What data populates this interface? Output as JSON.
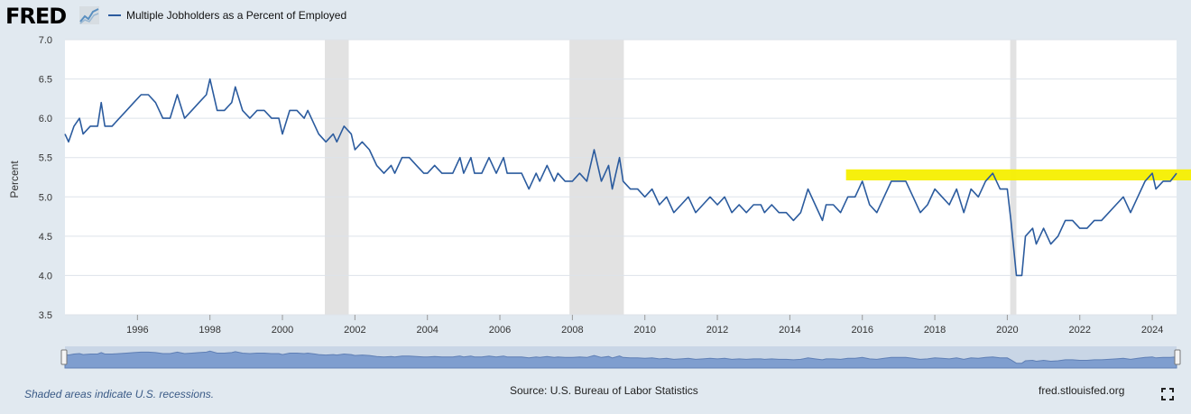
{
  "header": {
    "logo_text": "FRED",
    "logo_icon": "fred-chart-icon",
    "series_title": "Multiple Jobholders as a Percent of Employed"
  },
  "footer": {
    "recession_note": "Shaded areas indicate U.S. recessions.",
    "source": "Source: U.S. Bureau of Labor Statistics",
    "site": "fred.stlouisfed.org",
    "fullscreen_icon": "fullscreen-icon"
  },
  "colors": {
    "line": "#2b5b9e",
    "recession": "#e2e2e2",
    "highlight": "#f5ef00",
    "navigator": "#7f9ecf",
    "background": "#e1e9f0"
  },
  "chart_data": {
    "type": "line",
    "title": "Multiple Jobholders as a Percent of Employed",
    "ylabel": "Percent",
    "xlabel": "",
    "ylim": [
      3.5,
      7.0
    ],
    "xlim": [
      1994.0,
      2024.67
    ],
    "yticks": [
      "3.5",
      "4.0",
      "4.5",
      "5.0",
      "5.5",
      "6.0",
      "6.5",
      "7.0"
    ],
    "xticks": [
      "1996",
      "1998",
      "2000",
      "2002",
      "2004",
      "2006",
      "2008",
      "2010",
      "2012",
      "2014",
      "2016",
      "2018",
      "2020",
      "2022",
      "2024"
    ],
    "grid": true,
    "recessions": [
      [
        2001.17,
        2001.83
      ],
      [
        2007.92,
        2009.42
      ],
      [
        2020.08,
        2020.25
      ]
    ],
    "highlight": {
      "x": [
        2015.55,
        2024.67
      ],
      "y": [
        5.21,
        5.35
      ]
    },
    "series": [
      {
        "values": [
          [
            1994.0,
            5.8
          ],
          [
            1994.1,
            5.7
          ],
          [
            1994.25,
            5.9
          ],
          [
            1994.4,
            6.0
          ],
          [
            1994.5,
            5.8
          ],
          [
            1994.7,
            5.9
          ],
          [
            1994.9,
            5.9
          ],
          [
            1995.0,
            6.2
          ],
          [
            1995.1,
            5.9
          ],
          [
            1995.3,
            5.9
          ],
          [
            1995.5,
            6.0
          ],
          [
            1995.7,
            6.1
          ],
          [
            1995.9,
            6.2
          ],
          [
            1996.1,
            6.3
          ],
          [
            1996.3,
            6.3
          ],
          [
            1996.5,
            6.2
          ],
          [
            1996.7,
            6.0
          ],
          [
            1996.9,
            6.0
          ],
          [
            1997.1,
            6.3
          ],
          [
            1997.3,
            6.0
          ],
          [
            1997.5,
            6.1
          ],
          [
            1997.7,
            6.2
          ],
          [
            1997.9,
            6.3
          ],
          [
            1998.0,
            6.5
          ],
          [
            1998.2,
            6.1
          ],
          [
            1998.4,
            6.1
          ],
          [
            1998.6,
            6.2
          ],
          [
            1998.7,
            6.4
          ],
          [
            1998.9,
            6.1
          ],
          [
            1999.1,
            6.0
          ],
          [
            1999.3,
            6.1
          ],
          [
            1999.5,
            6.1
          ],
          [
            1999.7,
            6.0
          ],
          [
            1999.9,
            6.0
          ],
          [
            2000.0,
            5.8
          ],
          [
            2000.2,
            6.1
          ],
          [
            2000.4,
            6.1
          ],
          [
            2000.6,
            6.0
          ],
          [
            2000.7,
            6.1
          ],
          [
            2000.9,
            5.9
          ],
          [
            2001.0,
            5.8
          ],
          [
            2001.2,
            5.7
          ],
          [
            2001.4,
            5.8
          ],
          [
            2001.5,
            5.7
          ],
          [
            2001.7,
            5.9
          ],
          [
            2001.9,
            5.8
          ],
          [
            2002.0,
            5.6
          ],
          [
            2002.2,
            5.7
          ],
          [
            2002.4,
            5.6
          ],
          [
            2002.6,
            5.4
          ],
          [
            2002.8,
            5.3
          ],
          [
            2003.0,
            5.4
          ],
          [
            2003.1,
            5.3
          ],
          [
            2003.3,
            5.5
          ],
          [
            2003.5,
            5.5
          ],
          [
            2003.7,
            5.4
          ],
          [
            2003.9,
            5.3
          ],
          [
            2004.0,
            5.3
          ],
          [
            2004.2,
            5.4
          ],
          [
            2004.4,
            5.3
          ],
          [
            2004.5,
            5.3
          ],
          [
            2004.7,
            5.3
          ],
          [
            2004.9,
            5.5
          ],
          [
            2005.0,
            5.3
          ],
          [
            2005.2,
            5.5
          ],
          [
            2005.3,
            5.3
          ],
          [
            2005.5,
            5.3
          ],
          [
            2005.7,
            5.5
          ],
          [
            2005.9,
            5.3
          ],
          [
            2006.1,
            5.5
          ],
          [
            2006.2,
            5.3
          ],
          [
            2006.4,
            5.3
          ],
          [
            2006.6,
            5.3
          ],
          [
            2006.8,
            5.1
          ],
          [
            2007.0,
            5.3
          ],
          [
            2007.1,
            5.2
          ],
          [
            2007.3,
            5.4
          ],
          [
            2007.5,
            5.2
          ],
          [
            2007.6,
            5.3
          ],
          [
            2007.8,
            5.2
          ],
          [
            2008.0,
            5.2
          ],
          [
            2008.2,
            5.3
          ],
          [
            2008.4,
            5.2
          ],
          [
            2008.6,
            5.6
          ],
          [
            2008.8,
            5.2
          ],
          [
            2009.0,
            5.4
          ],
          [
            2009.1,
            5.1
          ],
          [
            2009.3,
            5.5
          ],
          [
            2009.4,
            5.2
          ],
          [
            2009.6,
            5.1
          ],
          [
            2009.8,
            5.1
          ],
          [
            2010.0,
            5.0
          ],
          [
            2010.2,
            5.1
          ],
          [
            2010.4,
            4.9
          ],
          [
            2010.6,
            5.0
          ],
          [
            2010.8,
            4.8
          ],
          [
            2011.0,
            4.9
          ],
          [
            2011.2,
            5.0
          ],
          [
            2011.4,
            4.8
          ],
          [
            2011.6,
            4.9
          ],
          [
            2011.8,
            5.0
          ],
          [
            2012.0,
            4.9
          ],
          [
            2012.2,
            5.0
          ],
          [
            2012.4,
            4.8
          ],
          [
            2012.6,
            4.9
          ],
          [
            2012.8,
            4.8
          ],
          [
            2013.0,
            4.9
          ],
          [
            2013.2,
            4.9
          ],
          [
            2013.3,
            4.8
          ],
          [
            2013.5,
            4.9
          ],
          [
            2013.7,
            4.8
          ],
          [
            2013.9,
            4.8
          ],
          [
            2014.1,
            4.7
          ],
          [
            2014.3,
            4.8
          ],
          [
            2014.5,
            5.1
          ],
          [
            2014.7,
            4.9
          ],
          [
            2014.9,
            4.7
          ],
          [
            2015.0,
            4.9
          ],
          [
            2015.2,
            4.9
          ],
          [
            2015.4,
            4.8
          ],
          [
            2015.6,
            5.0
          ],
          [
            2015.8,
            5.0
          ],
          [
            2016.0,
            5.2
          ],
          [
            2016.2,
            4.9
          ],
          [
            2016.4,
            4.8
          ],
          [
            2016.6,
            5.0
          ],
          [
            2016.8,
            5.2
          ],
          [
            2017.0,
            5.2
          ],
          [
            2017.2,
            5.2
          ],
          [
            2017.4,
            5.0
          ],
          [
            2017.6,
            4.8
          ],
          [
            2017.8,
            4.9
          ],
          [
            2018.0,
            5.1
          ],
          [
            2018.2,
            5.0
          ],
          [
            2018.4,
            4.9
          ],
          [
            2018.6,
            5.1
          ],
          [
            2018.8,
            4.8
          ],
          [
            2019.0,
            5.1
          ],
          [
            2019.2,
            5.0
          ],
          [
            2019.4,
            5.2
          ],
          [
            2019.6,
            5.3
          ],
          [
            2019.8,
            5.1
          ],
          [
            2020.0,
            5.1
          ],
          [
            2020.1,
            4.7
          ],
          [
            2020.25,
            4.0
          ],
          [
            2020.4,
            4.0
          ],
          [
            2020.5,
            4.5
          ],
          [
            2020.7,
            4.6
          ],
          [
            2020.8,
            4.4
          ],
          [
            2021.0,
            4.6
          ],
          [
            2021.2,
            4.4
          ],
          [
            2021.4,
            4.5
          ],
          [
            2021.6,
            4.7
          ],
          [
            2021.8,
            4.7
          ],
          [
            2022.0,
            4.6
          ],
          [
            2022.2,
            4.6
          ],
          [
            2022.4,
            4.7
          ],
          [
            2022.6,
            4.7
          ],
          [
            2022.8,
            4.8
          ],
          [
            2023.0,
            4.9
          ],
          [
            2023.2,
            5.0
          ],
          [
            2023.4,
            4.8
          ],
          [
            2023.6,
            5.0
          ],
          [
            2023.8,
            5.2
          ],
          [
            2024.0,
            5.3
          ],
          [
            2024.1,
            5.1
          ],
          [
            2024.3,
            5.2
          ],
          [
            2024.5,
            5.2
          ],
          [
            2024.67,
            5.3
          ]
        ]
      }
    ]
  }
}
